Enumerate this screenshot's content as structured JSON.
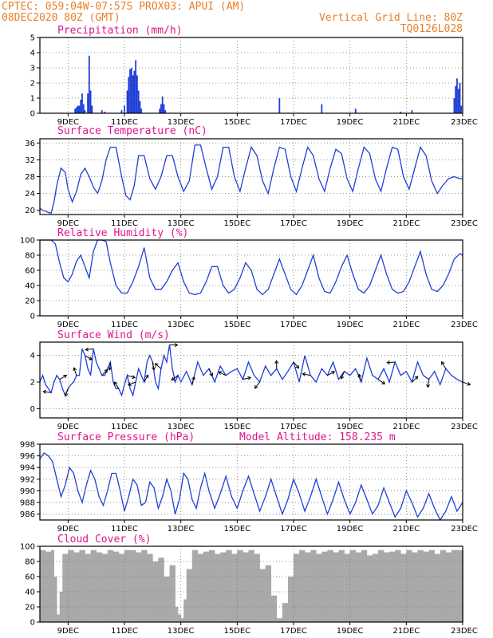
{
  "header": {
    "line1_left": "CPTEC:  059:04W-07:57S  PROX03: APUI (AM)",
    "line2_left": "08DEC2020 80Z (GMT)",
    "line2_right": "Vertical Grid Line: 80Z",
    "line3_right": "TQ0126L028"
  },
  "colors": {
    "series": "#1f3fd6",
    "cloud": "#a9a9a9",
    "title": "#e0148c",
    "header": "#e8802a"
  },
  "x_axis": {
    "ticks": [
      "9DEC",
      "11DEC",
      "13DEC",
      "15DEC",
      "17DEC",
      "19DEC",
      "21DEC",
      "23DEC"
    ],
    "tick_days": [
      9,
      11,
      13,
      15,
      17,
      19,
      21,
      23
    ],
    "range_days": [
      8.0,
      23.0
    ]
  },
  "chart_data": [
    {
      "type": "bar",
      "title": "Precipitation (mm/h)",
      "ylim": [
        0,
        5
      ],
      "yticks": [
        0,
        1,
        2,
        3,
        4,
        5
      ],
      "x_days": [
        9.25,
        9.3,
        9.35,
        9.4,
        9.45,
        9.5,
        9.55,
        9.6,
        9.7,
        9.75,
        9.8,
        9.85,
        10.2,
        10.3,
        10.9,
        11.0,
        11.1,
        11.15,
        11.2,
        11.25,
        11.3,
        11.35,
        11.4,
        11.45,
        11.5,
        11.55,
        11.6,
        12.25,
        12.3,
        12.35,
        12.4,
        12.45,
        16.5,
        18.0,
        19.2,
        20.8,
        21.2,
        22.7,
        22.75,
        22.8,
        22.85,
        22.9,
        22.95
      ],
      "values": [
        0.3,
        0.4,
        0.5,
        0.5,
        0.9,
        1.3,
        0.6,
        0.2,
        1.3,
        3.8,
        1.5,
        0.5,
        0.2,
        0.1,
        0.2,
        0.5,
        1.5,
        2.4,
        2.9,
        3.0,
        2.5,
        2.8,
        3.5,
        2.5,
        1.5,
        0.8,
        0.3,
        0.3,
        0.6,
        1.1,
        0.6,
        0.2,
        1.0,
        0.6,
        0.3,
        0.1,
        0.2,
        1.0,
        1.8,
        2.3,
        1.6,
        2.0,
        0.5
      ]
    },
    {
      "type": "line",
      "title": "Surface Temperature (nC)",
      "ylim": [
        19,
        37
      ],
      "yticks": [
        20,
        24,
        28,
        32,
        36
      ],
      "x_days": [
        8.0,
        8.1,
        8.2,
        8.3,
        8.4,
        8.5,
        8.6,
        8.75,
        8.9,
        9.0,
        9.15,
        9.3,
        9.45,
        9.6,
        9.75,
        9.9,
        10.05,
        10.2,
        10.35,
        10.5,
        10.7,
        10.9,
        11.05,
        11.2,
        11.35,
        11.5,
        11.7,
        11.9,
        12.1,
        12.3,
        12.5,
        12.7,
        12.9,
        13.1,
        13.3,
        13.5,
        13.7,
        13.9,
        14.1,
        14.3,
        14.5,
        14.7,
        14.9,
        15.1,
        15.3,
        15.5,
        15.7,
        15.9,
        16.1,
        16.3,
        16.5,
        16.7,
        16.9,
        17.1,
        17.3,
        17.5,
        17.7,
        17.9,
        18.1,
        18.3,
        18.5,
        18.7,
        18.9,
        19.1,
        19.3,
        19.5,
        19.7,
        19.9,
        20.1,
        20.3,
        20.5,
        20.7,
        20.9,
        21.1,
        21.3,
        21.5,
        21.7,
        21.9,
        22.1,
        22.3,
        22.5,
        22.7,
        22.9,
        23.0
      ],
      "values": [
        20.5,
        20.0,
        19.8,
        19.5,
        19.3,
        22.0,
        26.0,
        30.0,
        29.0,
        25.0,
        22.0,
        24.5,
        28.5,
        30.0,
        28.0,
        25.5,
        24.0,
        27.0,
        32.0,
        35.0,
        35.0,
        28.0,
        23.5,
        22.5,
        26.0,
        33.0,
        33.0,
        27.5,
        25.0,
        28.0,
        33.0,
        33.0,
        28.0,
        24.5,
        27.0,
        35.5,
        35.5,
        30.0,
        25.0,
        28.0,
        35.0,
        35.0,
        28.0,
        24.5,
        30.0,
        35.0,
        33.0,
        27.0,
        24.0,
        30.0,
        35.0,
        34.5,
        28.0,
        24.5,
        30.0,
        35.0,
        33.0,
        27.5,
        24.5,
        30.0,
        34.5,
        33.5,
        27.5,
        24.5,
        30.0,
        35.0,
        33.5,
        27.5,
        24.5,
        30.0,
        35.0,
        34.5,
        28.0,
        25.0,
        30.0,
        35.0,
        33.0,
        27.0,
        24.0,
        26.0,
        27.5,
        28.0,
        27.5,
        27.5
      ]
    },
    {
      "type": "line",
      "title": "Relative Humidity (%)",
      "ylim": [
        0,
        100
      ],
      "yticks": [
        0,
        20,
        40,
        60,
        80,
        100
      ],
      "x_days": [
        8.0,
        8.2,
        8.4,
        8.55,
        8.7,
        8.85,
        9.0,
        9.15,
        9.3,
        9.45,
        9.6,
        9.75,
        9.9,
        10.05,
        10.2,
        10.35,
        10.5,
        10.7,
        10.9,
        11.1,
        11.3,
        11.5,
        11.7,
        11.9,
        12.1,
        12.3,
        12.5,
        12.7,
        12.9,
        13.1,
        13.3,
        13.5,
        13.7,
        13.9,
        14.1,
        14.3,
        14.5,
        14.7,
        14.9,
        15.1,
        15.3,
        15.5,
        15.7,
        15.9,
        16.1,
        16.3,
        16.5,
        16.7,
        16.9,
        17.1,
        17.3,
        17.5,
        17.7,
        17.9,
        18.1,
        18.3,
        18.5,
        18.7,
        18.9,
        19.1,
        19.3,
        19.5,
        19.7,
        19.9,
        20.1,
        20.3,
        20.5,
        20.7,
        20.9,
        21.1,
        21.3,
        21.5,
        21.7,
        21.9,
        22.1,
        22.3,
        22.5,
        22.7,
        22.9,
        23.0
      ],
      "values": [
        100,
        100,
        100,
        95,
        70,
        50,
        45,
        55,
        72,
        80,
        65,
        50,
        85,
        100,
        100,
        98,
        70,
        40,
        30,
        30,
        45,
        65,
        90,
        50,
        35,
        35,
        45,
        60,
        70,
        45,
        30,
        28,
        30,
        45,
        65,
        65,
        40,
        30,
        35,
        50,
        70,
        60,
        35,
        28,
        35,
        55,
        75,
        55,
        35,
        28,
        40,
        60,
        80,
        50,
        32,
        30,
        45,
        65,
        80,
        55,
        35,
        30,
        40,
        60,
        80,
        55,
        35,
        30,
        32,
        45,
        65,
        85,
        55,
        35,
        32,
        40,
        55,
        75,
        82,
        80
      ]
    },
    {
      "type": "line",
      "title": "Surface Wind (m/s)",
      "ylim": [
        -0.7,
        5.0
      ],
      "yticks": [
        0,
        2,
        4
      ],
      "x_days": [
        8.0,
        8.1,
        8.2,
        8.3,
        8.4,
        8.5,
        8.6,
        8.7,
        8.8,
        8.9,
        9.0,
        9.1,
        9.2,
        9.3,
        9.4,
        9.5,
        9.6,
        9.7,
        9.8,
        9.9,
        10.0,
        10.1,
        10.2,
        10.3,
        10.4,
        10.5,
        10.6,
        10.7,
        10.8,
        10.9,
        11.0,
        11.1,
        11.2,
        11.3,
        11.4,
        11.5,
        11.6,
        11.7,
        11.8,
        11.9,
        12.0,
        12.1,
        12.2,
        12.3,
        12.4,
        12.5,
        12.6,
        12.7,
        12.8,
        12.9,
        13.0,
        13.2,
        13.4,
        13.6,
        13.8,
        14.0,
        14.2,
        14.4,
        14.6,
        14.8,
        15.0,
        15.2,
        15.4,
        15.6,
        15.8,
        16.0,
        16.2,
        16.4,
        16.6,
        16.8,
        17.0,
        17.2,
        17.4,
        17.6,
        17.8,
        18.0,
        18.2,
        18.4,
        18.6,
        18.8,
        19.0,
        19.2,
        19.4,
        19.6,
        19.8,
        20.0,
        20.2,
        20.4,
        20.6,
        20.8,
        21.0,
        21.2,
        21.4,
        21.6,
        21.8,
        22.0,
        22.2,
        22.4,
        22.6,
        22.8,
        23.0
      ],
      "values": [
        2.0,
        2.5,
        1.8,
        1.5,
        1.2,
        2.0,
        2.5,
        2.2,
        1.5,
        1.0,
        1.5,
        1.8,
        2.0,
        2.5,
        2.5,
        4.5,
        4.0,
        3.0,
        2.5,
        4.5,
        3.5,
        3.0,
        2.5,
        2.5,
        3.0,
        3.5,
        2.0,
        1.5,
        1.5,
        1.0,
        1.8,
        2.5,
        1.5,
        1.0,
        2.0,
        3.0,
        2.5,
        2.0,
        3.5,
        4.0,
        3.5,
        2.0,
        1.5,
        3.0,
        4.0,
        3.5,
        4.8,
        3.0,
        2.0,
        2.5,
        2.0,
        2.8,
        1.8,
        3.5,
        2.5,
        3.0,
        2.0,
        3.2,
        2.5,
        2.8,
        3.0,
        2.2,
        3.5,
        2.5,
        2.0,
        3.2,
        2.5,
        3.0,
        2.2,
        2.8,
        3.5,
        2.0,
        4.0,
        2.5,
        2.0,
        3.0,
        2.5,
        3.5,
        2.2,
        2.8,
        2.5,
        3.0,
        2.0,
        3.8,
        2.5,
        2.2,
        3.0,
        2.0,
        3.5,
        2.5,
        2.8,
        2.0,
        3.5,
        2.5,
        2.2,
        2.8,
        1.8,
        3.0,
        2.5,
        2.2,
        2.0
      ]
    },
    {
      "type": "line",
      "title": "Surface Pressure (hPa)",
      "annotation": "Model Altitude: 158.235 m",
      "ylim": [
        985,
        998
      ],
      "yticks": [
        986,
        988,
        990,
        992,
        994,
        996,
        998
      ],
      "x_days": [
        8.0,
        8.15,
        8.3,
        8.45,
        8.6,
        8.75,
        8.9,
        9.05,
        9.2,
        9.35,
        9.5,
        9.65,
        9.8,
        9.95,
        10.1,
        10.25,
        10.4,
        10.55,
        10.7,
        10.85,
        11.0,
        11.15,
        11.3,
        11.45,
        11.6,
        11.75,
        11.9,
        12.05,
        12.2,
        12.35,
        12.5,
        12.65,
        12.8,
        12.95,
        13.1,
        13.25,
        13.4,
        13.55,
        13.7,
        13.85,
        14.0,
        14.2,
        14.4,
        14.6,
        14.8,
        15.0,
        15.2,
        15.4,
        15.6,
        15.8,
        16.0,
        16.2,
        16.4,
        16.6,
        16.8,
        17.0,
        17.2,
        17.4,
        17.6,
        17.8,
        18.0,
        18.2,
        18.4,
        18.6,
        18.8,
        19.0,
        19.2,
        19.4,
        19.6,
        19.8,
        20.0,
        20.2,
        20.4,
        20.6,
        20.8,
        21.0,
        21.2,
        21.4,
        21.6,
        21.8,
        22.0,
        22.2,
        22.4,
        22.6,
        22.8,
        23.0
      ],
      "values": [
        995.5,
        996.5,
        996.0,
        995.0,
        992.0,
        989.0,
        991.0,
        994.0,
        993.0,
        990.0,
        988.0,
        991.0,
        993.5,
        992.0,
        989.0,
        987.5,
        990.0,
        993.0,
        993.0,
        990.0,
        986.5,
        989.0,
        992.0,
        991.0,
        987.5,
        988.0,
        991.5,
        990.5,
        987.0,
        989.0,
        992.0,
        990.0,
        986.0,
        988.5,
        993.0,
        992.0,
        988.5,
        987.0,
        990.5,
        993.0,
        990.0,
        987.0,
        989.5,
        992.5,
        989.0,
        987.0,
        990.0,
        992.5,
        989.5,
        986.5,
        989.0,
        992.0,
        989.0,
        986.0,
        988.5,
        992.0,
        989.5,
        986.5,
        989.0,
        992.0,
        989.0,
        986.0,
        988.5,
        991.5,
        988.5,
        986.0,
        988.0,
        991.0,
        988.5,
        986.0,
        987.5,
        990.5,
        988.0,
        985.5,
        987.0,
        990.0,
        988.0,
        985.5,
        987.0,
        989.5,
        987.0,
        985.0,
        986.5,
        989.0,
        986.5,
        988.0
      ]
    },
    {
      "type": "bar",
      "title": "Cloud Cover (%)",
      "ylim": [
        0,
        100
      ],
      "yticks": [
        0,
        20,
        40,
        60,
        80,
        100
      ],
      "x_days": [
        8.0,
        8.2,
        8.4,
        8.5,
        8.6,
        8.7,
        8.8,
        9.0,
        9.2,
        9.4,
        9.6,
        9.8,
        10.0,
        10.2,
        10.4,
        10.6,
        10.8,
        11.0,
        11.2,
        11.4,
        11.6,
        11.8,
        12.0,
        12.2,
        12.4,
        12.6,
        12.8,
        12.9,
        13.0,
        13.1,
        13.2,
        13.4,
        13.6,
        13.8,
        14.0,
        14.2,
        14.4,
        14.6,
        14.8,
        15.0,
        15.2,
        15.4,
        15.6,
        15.8,
        16.0,
        16.2,
        16.4,
        16.6,
        16.8,
        17.0,
        17.2,
        17.4,
        17.6,
        17.8,
        18.0,
        18.2,
        18.4,
        18.6,
        18.8,
        19.0,
        19.2,
        19.4,
        19.6,
        19.8,
        20.0,
        20.2,
        20.4,
        20.6,
        20.8,
        21.0,
        21.2,
        21.4,
        21.6,
        21.8,
        22.0,
        22.2,
        22.4,
        22.6,
        22.8,
        23.0
      ],
      "values": [
        95,
        93,
        95,
        60,
        10,
        40,
        90,
        95,
        92,
        95,
        90,
        95,
        92,
        90,
        95,
        93,
        90,
        95,
        95,
        92,
        95,
        90,
        80,
        85,
        60,
        75,
        20,
        10,
        5,
        30,
        70,
        95,
        90,
        93,
        95,
        90,
        92,
        95,
        90,
        95,
        92,
        95,
        90,
        70,
        75,
        35,
        5,
        25,
        60,
        90,
        95,
        92,
        95,
        90,
        93,
        95,
        92,
        95,
        90,
        95,
        92,
        95,
        88,
        90,
        95,
        92,
        93,
        95,
        90,
        95,
        92,
        95,
        93,
        95,
        90,
        95,
        92,
        95,
        95,
        95
      ]
    }
  ]
}
